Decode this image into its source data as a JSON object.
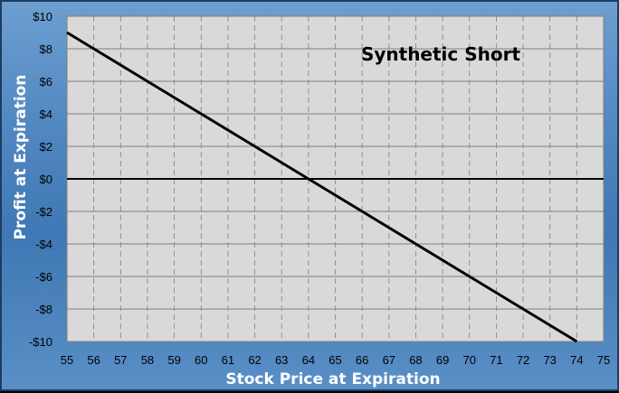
{
  "chart_data": {
    "type": "line",
    "title": "Synthetic Short",
    "xlabel": "Stock Price at Expiration",
    "ylabel": "Profit at Expiration",
    "x_ticks": [
      "55",
      "56",
      "57",
      "58",
      "59",
      "60",
      "61",
      "62",
      "63",
      "64",
      "65",
      "66",
      "67",
      "68",
      "69",
      "70",
      "71",
      "72",
      "73",
      "74",
      "75"
    ],
    "y_ticks": [
      "$10",
      "$8",
      "$6",
      "$4",
      "$2",
      "$0",
      "-$2",
      "-$4",
      "-$6",
      "-$8",
      "-$10"
    ],
    "xlim": [
      55,
      75
    ],
    "ylim": [
      -10,
      10
    ],
    "grid": true,
    "series": [
      {
        "x": [
          55,
          56,
          57,
          58,
          59,
          60,
          61,
          62,
          63,
          64,
          65,
          66,
          67,
          68,
          69,
          70,
          71,
          72,
          73,
          74
        ],
        "y": [
          9,
          8,
          7,
          6,
          5,
          4,
          3,
          2,
          1,
          0,
          -1,
          -2,
          -3,
          -4,
          -5,
          -6,
          -7,
          -8,
          -9,
          -10
        ],
        "color": "#000000"
      }
    ],
    "zero_line": true,
    "colors": {
      "plot_bg": "#d9d9d9",
      "gridline": "#808080",
      "line": "#000000",
      "frame_bg": "#4f86c0"
    }
  }
}
